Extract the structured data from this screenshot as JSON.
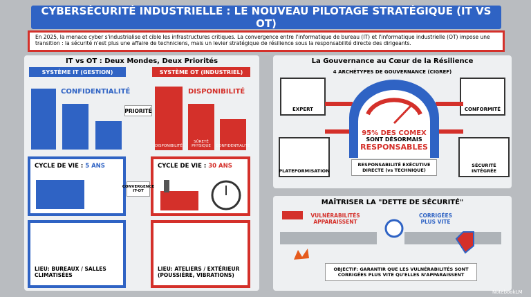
{
  "header": {
    "title": "CYBERSÉCURITÉ INDUSTRIELLE : LE NOUVEAU PILOTAGE STRATÉGIQUE (IT VS OT)",
    "intro": "En 2025, la menace cyber s'industrialise et cible les infrastructures critiques. La convergence entre l'informatique de bureau (IT) et l'informatique industrielle (OT) impose une transition : la sécurité n'est plus une affaire de techniciens, mais un levier stratégique de résilience sous la responsabilité directe des dirigeants."
  },
  "comparison": {
    "title": "IT vs OT : Deux Mondes, Deux Priorités",
    "priority": "PRIORITÉ",
    "convergence": "CONVERGENCE IT-OT",
    "lifecycle_label": "CYCLE DE VIE :",
    "it": {
      "label": "SYSTÈME IT (GESTION)",
      "priority": "CONFIDENTIALITÉ",
      "lifecycle": "5 ANS",
      "location": "LIEU: BUREAUX / SALLES CLIMATISÉES"
    },
    "ot": {
      "label": "SYSTÈME OT (INDUSTRIEL)",
      "priority": "DISPONIBILITÉ",
      "blocks": [
        "DISPONIBILITÉ",
        "SÛRETÉ PHYSIQUE",
        "CONFIDENTIALITÉ"
      ],
      "lifecycle": "30 ANS",
      "location": "LIEU: ATELIERS / EXTÉRIEUR (POUSSIÈRE, VIBRATIONS)"
    }
  },
  "governance": {
    "title": "La Gouvernance au Cœur de la Résilience",
    "subtitle": "4 ARCHÉTYPES DE GOUVERNANCE (CIGREF)",
    "archetypes": [
      "EXPERT",
      "CONFORMITÉ",
      "PLATEFORMISATION",
      "SÉCURITÉ INTÉGRÉE"
    ],
    "gauge": [
      "95% DES COMEX",
      "SONT DÉSORMAIS",
      "RESPONSABLES"
    ],
    "caption": "RESPONSABILITÉ EXÉCUTIVE DIRECTE (vs TECHNIQUE)"
  },
  "debt": {
    "title": "MAÎTRISER LA \"DETTE DE SÉCURITÉ\"",
    "left": "VULNÉRABILITÉS APPARAISSENT",
    "right": "CORRIGÉES PLUS VITE",
    "objective": "OBJECTIF: GARANTIR QUE LES VULNÉRABILITÉS SONT CORRIGÉES PLUS VITE QU'ELLES N'APPARAISSENT"
  },
  "footer": {
    "brand": "NotebookLM"
  }
}
